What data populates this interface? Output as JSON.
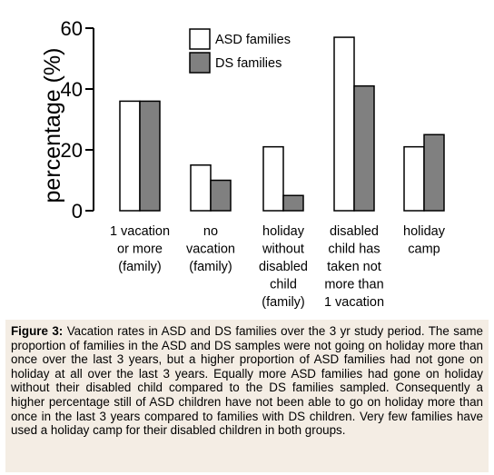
{
  "chart_data": {
    "type": "bar",
    "title": "",
    "xlabel": "",
    "ylabel": "percentage (%)",
    "ylim": [
      0,
      60
    ],
    "yticks": [
      0,
      20,
      40,
      60
    ],
    "grid": false,
    "legend_position": "top",
    "categories": [
      [
        "1 vacation",
        "or more",
        "(family)"
      ],
      [
        "no",
        "vacation",
        "(family)"
      ],
      [
        "holiday",
        "without",
        "disabled",
        "child",
        "(family)"
      ],
      [
        "disabled",
        "child has",
        "taken not",
        "more than",
        "1 vacation"
      ],
      [
        "holiday",
        "camp"
      ]
    ],
    "series": [
      {
        "name": "ASD families",
        "color": "#ffffff",
        "values": [
          36,
          15,
          21,
          57,
          21
        ]
      },
      {
        "name": "DS families",
        "color": "#808080",
        "values": [
          36,
          10,
          5,
          41,
          25
        ]
      }
    ]
  },
  "caption": {
    "label": "Figure 3:",
    "text": " Vacation rates in ASD and DS families over the 3 yr study period. The same proportion of families in the ASD and DS samples were not going on holiday more than once over the last 3 years, but a higher proportion of ASD families had not gone on holiday at all over the last 3 years. Equally more ASD families had gone on holiday without their disabled child compared to the DS families sampled. Consequently a higher percentage still of ASD children have not been able to go on holiday more than once in the last 3 years compared to families with DS children. Very few families have used a holiday camp for their disabled children in both groups."
  }
}
